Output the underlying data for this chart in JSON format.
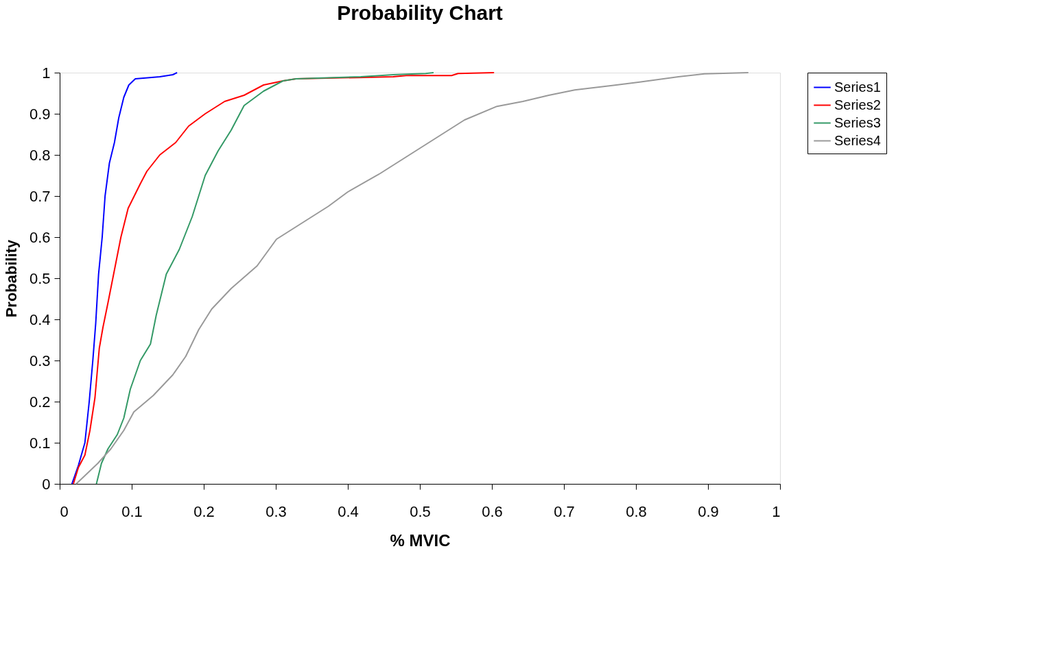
{
  "chart_data": {
    "type": "line",
    "title": "Probability Chart",
    "xlabel": "% MVIC",
    "ylabel": "Probability",
    "xlim": [
      0,
      1
    ],
    "ylim": [
      0,
      1
    ],
    "xticks": [
      0,
      0.1,
      0.2,
      0.3,
      0.4,
      0.5,
      0.6,
      0.7,
      0.8,
      0.9,
      1
    ],
    "yticks": [
      0,
      0.1,
      0.2,
      0.3,
      0.4,
      0.5,
      0.6,
      0.7,
      0.8,
      0.9,
      1
    ],
    "grid": false,
    "legend": "right",
    "marker": "none",
    "line_style": "solid",
    "series": [
      {
        "name": "Series1",
        "color": "#0000ff",
        "x": [
          0.017,
          0.026,
          0.035,
          0.041,
          0.046,
          0.05,
          0.054,
          0.059,
          0.063,
          0.069,
          0.076,
          0.082,
          0.089,
          0.096,
          0.105,
          0.139,
          0.157,
          0.163
        ],
        "values": [
          0,
          0.045,
          0.1,
          0.2,
          0.3,
          0.39,
          0.51,
          0.6,
          0.7,
          0.78,
          0.83,
          0.89,
          0.94,
          0.97,
          0.985,
          0.99,
          0.995,
          1.0
        ]
      },
      {
        "name": "Series2",
        "color": "#ff0000",
        "x": [
          0.019,
          0.026,
          0.035,
          0.042,
          0.049,
          0.055,
          0.06,
          0.067,
          0.076,
          0.085,
          0.095,
          0.112,
          0.121,
          0.139,
          0.161,
          0.179,
          0.202,
          0.229,
          0.256,
          0.283,
          0.31,
          0.328,
          0.463,
          0.481,
          0.544,
          0.553,
          0.603
        ],
        "values": [
          0,
          0.04,
          0.07,
          0.13,
          0.21,
          0.33,
          0.38,
          0.44,
          0.52,
          0.6,
          0.67,
          0.73,
          0.76,
          0.8,
          0.83,
          0.87,
          0.9,
          0.93,
          0.945,
          0.97,
          0.98,
          0.985,
          0.99,
          0.993,
          0.993,
          0.998,
          1.0
        ]
      },
      {
        "name": "Series3",
        "color": "#339966",
        "x": [
          0.051,
          0.058,
          0.067,
          0.08,
          0.089,
          0.098,
          0.112,
          0.126,
          0.134,
          0.148,
          0.166,
          0.184,
          0.202,
          0.22,
          0.238,
          0.256,
          0.283,
          0.31,
          0.328,
          0.418,
          0.463,
          0.508,
          0.519
        ],
        "values": [
          0,
          0.05,
          0.085,
          0.12,
          0.16,
          0.23,
          0.3,
          0.34,
          0.41,
          0.51,
          0.57,
          0.65,
          0.75,
          0.81,
          0.86,
          0.92,
          0.955,
          0.98,
          0.985,
          0.99,
          0.995,
          0.998,
          1.0
        ]
      },
      {
        "name": "Series4",
        "color": "#999999",
        "x": [
          0.023,
          0.035,
          0.053,
          0.071,
          0.089,
          0.103,
          0.13,
          0.157,
          0.175,
          0.193,
          0.211,
          0.238,
          0.274,
          0.301,
          0.337,
          0.373,
          0.4,
          0.445,
          0.49,
          0.526,
          0.562,
          0.607,
          0.643,
          0.679,
          0.715,
          0.769,
          0.805,
          0.859,
          0.895,
          0.956
        ],
        "values": [
          0,
          0.02,
          0.05,
          0.085,
          0.13,
          0.175,
          0.215,
          0.265,
          0.31,
          0.375,
          0.425,
          0.475,
          0.53,
          0.595,
          0.635,
          0.675,
          0.71,
          0.755,
          0.805,
          0.845,
          0.885,
          0.918,
          0.93,
          0.945,
          0.958,
          0.969,
          0.977,
          0.99,
          0.997,
          1.0
        ]
      }
    ]
  }
}
